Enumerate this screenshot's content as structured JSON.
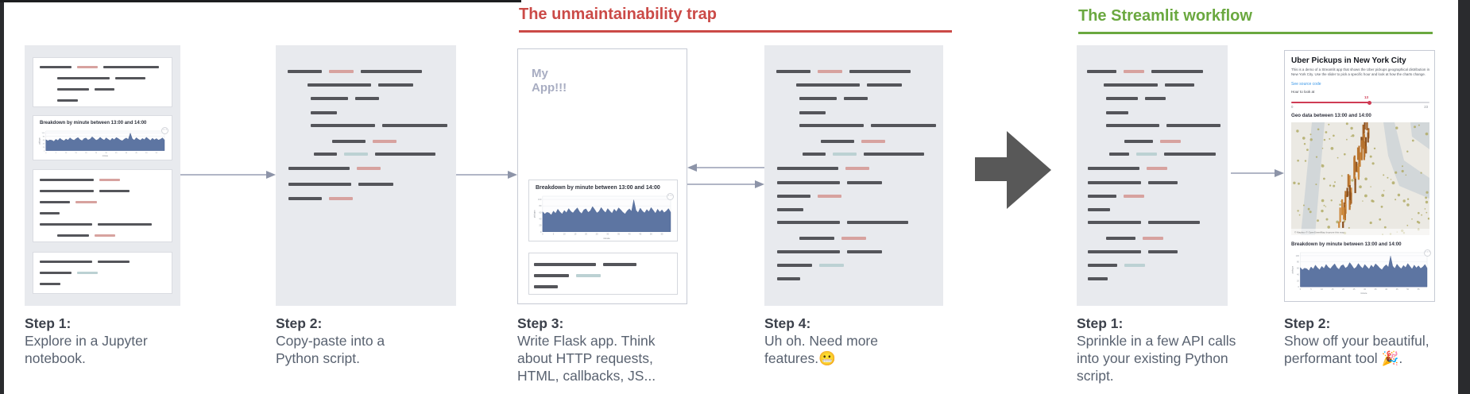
{
  "sections": {
    "trap": {
      "title": "The unmaintainability trap",
      "color": "#cb4a47"
    },
    "streamlit": {
      "title": "The Streamlit workflow",
      "color": "#6aa83f"
    }
  },
  "captions": [
    {
      "title": "Step 1:",
      "body": "Explore in a Jupyter notebook."
    },
    {
      "title": "Step 2:",
      "body": "Copy-paste into a Python script."
    },
    {
      "title": "Step 3:",
      "body": "Write Flask app. Think about HTTP requests, HTML, callbacks, JS..."
    },
    {
      "title": "Step 4:",
      "body": "Uh oh. Need more features.😬"
    },
    {
      "title": "Step 1:",
      "body": "Sprinkle in a few API calls into your existing Python script."
    },
    {
      "title": "Step 2:",
      "body": "Show off your beautiful, performant tool 🎉."
    }
  ],
  "flask_app": {
    "title": "My\nApp!!!"
  },
  "uber_app": {
    "title": "Uber Pickups in New York City",
    "description": "This is a demo of a Streamlit app that shows the Uber pickups geographical distribution in New York City. Use the slider to pick a specific hour and look at how the charts change.",
    "source_link": "See source code",
    "slider": {
      "label": "Hour to look at",
      "value": "13",
      "min": "0",
      "max": "23"
    },
    "geo_heading": "Geo data between 13:00 and 14:00",
    "breakdown_heading": "Breakdown by minute between 13:00 and 14:00",
    "map_attribution": "© Mapbox © OpenStreetMap Improve this map"
  },
  "colors": {
    "panel_bg": "#e8eaee",
    "line_dark": "#54555a",
    "line_accent": "#d7a29f",
    "line_muted": "#bcd1d3",
    "chart_fill": "#5d75a2",
    "slider_red": "#cf3b54",
    "link_blue": "#3c98e8",
    "arrow_gray": "#979eb4",
    "big_arrow": "#585858",
    "app_title_gray": "#a8adc2"
  },
  "chart_data": [
    {
      "id": "breakdown-by-minute",
      "type": "area",
      "title": "Breakdown by minute between 13:00 and 14:00",
      "xlabel": "minute",
      "ylabel": "pickups",
      "x_range": [
        0,
        59
      ],
      "ylim": [
        0,
        110
      ],
      "grid": true,
      "legend": "none",
      "values": [
        62,
        55,
        60,
        58,
        52,
        64,
        57,
        70,
        61,
        55,
        66,
        59,
        72,
        63,
        58,
        67,
        74,
        62,
        56,
        68,
        71,
        60,
        65,
        78,
        69,
        58,
        63,
        75,
        66,
        59,
        72,
        64,
        57,
        70,
        62,
        74,
        68,
        60,
        55,
        65,
        71,
        63,
        99,
        67,
        59,
        73,
        64,
        58,
        69,
        62,
        75,
        66,
        57,
        70,
        61,
        68,
        59,
        64,
        72,
        60
      ],
      "shown_in": [
        "jupyter-notebook-panel",
        "flask-app-panel",
        "streamlit-app-panel"
      ]
    },
    {
      "id": "geo-map",
      "type": "heatmap",
      "title": "Geo data between 13:00 and 14:00",
      "note": "3D hexagon-bar map of Uber pickup density over New York City"
    }
  ],
  "code_lines": {
    "script_a": [
      {
        "mt": 0,
        "indent": 15,
        "segs": [
          [
            "dark",
            43
          ],
          [
            "accent",
            31
          ],
          [
            "dark",
            77
          ]
        ]
      },
      {
        "mt": 13,
        "indent": 40,
        "segs": [
          [
            "dark",
            80
          ],
          [
            "dark",
            44
          ]
        ]
      },
      {
        "mt": 13,
        "indent": 44,
        "segs": [
          [
            "dark",
            47
          ],
          [
            "dark",
            30
          ]
        ]
      },
      {
        "mt": 14,
        "indent": 44,
        "segs": [
          [
            "dark",
            33
          ]
        ]
      },
      {
        "mt": 12,
        "indent": 44,
        "segs": [
          [
            "dark",
            81
          ],
          [
            "dark",
            82
          ]
        ]
      },
      {
        "mt": 16,
        "indent": 71,
        "segs": [
          [
            "dark",
            42
          ],
          [
            "accent",
            30
          ]
        ]
      },
      {
        "mt": 12,
        "indent": 48,
        "segs": [
          [
            "dark",
            29
          ],
          [
            "muted",
            30
          ],
          [
            "dark",
            76
          ]
        ]
      },
      {
        "mt": 14,
        "indent": 16,
        "segs": [
          [
            "dark",
            77
          ],
          [
            "accent",
            30
          ]
        ]
      },
      {
        "mt": 16,
        "indent": 16,
        "segs": [
          [
            "dark",
            79
          ],
          [
            "dark",
            44
          ]
        ]
      },
      {
        "mt": 14,
        "indent": 16,
        "segs": [
          [
            "dark",
            42
          ],
          [
            "accent",
            30
          ]
        ]
      }
    ],
    "script_b": [
      {
        "mt": 0,
        "indent": 15,
        "segs": [
          [
            "dark",
            43
          ],
          [
            "accent",
            31
          ],
          [
            "dark",
            77
          ]
        ]
      },
      {
        "mt": 13,
        "indent": 40,
        "segs": [
          [
            "dark",
            80
          ],
          [
            "dark",
            44
          ]
        ]
      },
      {
        "mt": 13,
        "indent": 44,
        "segs": [
          [
            "dark",
            47
          ],
          [
            "dark",
            30
          ]
        ]
      },
      {
        "mt": 14,
        "indent": 44,
        "segs": [
          [
            "dark",
            33
          ]
        ]
      },
      {
        "mt": 12,
        "indent": 44,
        "segs": [
          [
            "dark",
            81
          ],
          [
            "dark",
            82
          ]
        ]
      },
      {
        "mt": 16,
        "indent": 71,
        "segs": [
          [
            "dark",
            42
          ],
          [
            "accent",
            30
          ]
        ]
      },
      {
        "mt": 12,
        "indent": 48,
        "segs": [
          [
            "dark",
            29
          ],
          [
            "muted",
            30
          ],
          [
            "dark",
            76
          ]
        ]
      },
      {
        "mt": 14,
        "indent": 16,
        "segs": [
          [
            "dark",
            77
          ],
          [
            "accent",
            30
          ]
        ]
      },
      {
        "mt": 14,
        "indent": 16,
        "segs": [
          [
            "dark",
            79
          ],
          [
            "dark",
            44
          ]
        ]
      },
      {
        "mt": 13,
        "indent": 16,
        "segs": [
          [
            "dark",
            42
          ],
          [
            "accent",
            30
          ]
        ]
      },
      {
        "mt": 13,
        "indent": 16,
        "segs": [
          [
            "dark",
            33
          ]
        ]
      },
      {
        "mt": 12,
        "indent": 16,
        "segs": [
          [
            "dark",
            79
          ],
          [
            "dark",
            77
          ]
        ]
      },
      {
        "mt": 16,
        "indent": 44,
        "segs": [
          [
            "dark",
            44
          ],
          [
            "accent",
            31
          ]
        ]
      },
      {
        "mt": 13,
        "indent": 16,
        "segs": [
          [
            "dark",
            79
          ],
          [
            "dark",
            44
          ]
        ]
      },
      {
        "mt": 13,
        "indent": 16,
        "segs": [
          [
            "dark",
            44
          ],
          [
            "muted",
            31
          ]
        ]
      },
      {
        "mt": 13,
        "indent": 16,
        "segs": [
          [
            "dark",
            29
          ]
        ]
      }
    ],
    "script_c": [
      {
        "mt": 0,
        "indent": 13,
        "segs": [
          [
            "dark",
            37
          ],
          [
            "accent",
            26
          ],
          [
            "dark",
            65
          ]
        ]
      },
      {
        "mt": 13,
        "indent": 34,
        "segs": [
          [
            "dark",
            68
          ],
          [
            "dark",
            37
          ]
        ]
      },
      {
        "mt": 13,
        "indent": 37,
        "segs": [
          [
            "dark",
            40
          ],
          [
            "dark",
            26
          ]
        ]
      },
      {
        "mt": 14,
        "indent": 37,
        "segs": [
          [
            "dark",
            28
          ]
        ]
      },
      {
        "mt": 12,
        "indent": 37,
        "segs": [
          [
            "dark",
            69
          ],
          [
            "dark",
            70
          ]
        ]
      },
      {
        "mt": 16,
        "indent": 60,
        "segs": [
          [
            "dark",
            36
          ],
          [
            "accent",
            26
          ]
        ]
      },
      {
        "mt": 12,
        "indent": 41,
        "segs": [
          [
            "dark",
            25
          ],
          [
            "muted",
            26
          ],
          [
            "dark",
            65
          ]
        ]
      },
      {
        "mt": 14,
        "indent": 14,
        "segs": [
          [
            "dark",
            65
          ],
          [
            "accent",
            26
          ]
        ]
      },
      {
        "mt": 14,
        "indent": 14,
        "segs": [
          [
            "dark",
            67
          ],
          [
            "dark",
            37
          ]
        ]
      },
      {
        "mt": 13,
        "indent": 14,
        "segs": [
          [
            "dark",
            36
          ],
          [
            "accent",
            26
          ]
        ]
      },
      {
        "mt": 13,
        "indent": 14,
        "segs": [
          [
            "dark",
            28
          ]
        ]
      },
      {
        "mt": 12,
        "indent": 14,
        "segs": [
          [
            "dark",
            67
          ],
          [
            "dark",
            65
          ]
        ]
      },
      {
        "mt": 16,
        "indent": 37,
        "segs": [
          [
            "dark",
            37
          ],
          [
            "accent",
            26
          ]
        ]
      },
      {
        "mt": 13,
        "indent": 14,
        "segs": [
          [
            "dark",
            67
          ],
          [
            "dark",
            37
          ]
        ]
      },
      {
        "mt": 13,
        "indent": 14,
        "segs": [
          [
            "dark",
            37
          ],
          [
            "muted",
            26
          ]
        ]
      },
      {
        "mt": 13,
        "indent": 14,
        "segs": [
          [
            "dark",
            25
          ]
        ]
      }
    ],
    "nb_card1": [
      {
        "mt": 0,
        "indent": 8,
        "segs": [
          [
            "dark",
            40
          ],
          [
            "accent",
            26
          ],
          [
            "dark",
            70
          ]
        ]
      },
      {
        "mt": 11,
        "indent": 30,
        "segs": [
          [
            "dark",
            66
          ],
          [
            "dark",
            38
          ]
        ]
      },
      {
        "mt": 11,
        "indent": 30,
        "segs": [
          [
            "dark",
            40
          ],
          [
            "dark",
            25
          ]
        ]
      },
      {
        "mt": 11,
        "indent": 30,
        "segs": [
          [
            "dark",
            26
          ]
        ]
      }
    ],
    "nb_card3": [
      {
        "mt": 0,
        "indent": 8,
        "segs": [
          [
            "dark",
            68
          ],
          [
            "accent",
            26
          ]
        ]
      },
      {
        "mt": 11,
        "indent": 8,
        "segs": [
          [
            "dark",
            68
          ],
          [
            "dark",
            38
          ]
        ]
      },
      {
        "mt": 11,
        "indent": 8,
        "segs": [
          [
            "dark",
            38
          ],
          [
            "accent",
            27
          ]
        ]
      },
      {
        "mt": 11,
        "indent": 8,
        "segs": [
          [
            "dark",
            25
          ]
        ]
      },
      {
        "mt": 11,
        "indent": 8,
        "segs": [
          [
            "dark",
            66
          ],
          [
            "dark",
            68
          ]
        ]
      },
      {
        "mt": 11,
        "indent": 30,
        "segs": [
          [
            "dark",
            40
          ],
          [
            "accent",
            26
          ]
        ]
      }
    ],
    "nb_card4": [
      {
        "mt": 0,
        "indent": 8,
        "segs": [
          [
            "dark",
            66
          ],
          [
            "dark",
            40
          ]
        ]
      },
      {
        "mt": 11,
        "indent": 8,
        "segs": [
          [
            "dark",
            40
          ],
          [
            "muted",
            26
          ]
        ]
      },
      {
        "mt": 11,
        "indent": 8,
        "segs": [
          [
            "dark",
            26
          ]
        ]
      }
    ],
    "flask_card": [
      {
        "mt": 0,
        "indent": 6,
        "segs": [
          [
            "dark",
            78
          ],
          [
            "dark",
            42
          ]
        ]
      },
      {
        "mt": 10,
        "indent": 6,
        "segs": [
          [
            "dark",
            44
          ],
          [
            "muted",
            31
          ]
        ]
      },
      {
        "mt": 10,
        "indent": 6,
        "segs": [
          [
            "dark",
            30
          ]
        ]
      }
    ]
  }
}
